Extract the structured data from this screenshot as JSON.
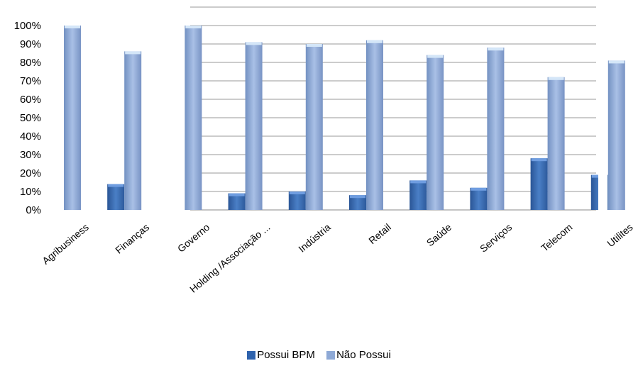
{
  "chart_data": {
    "type": "bar",
    "categories": [
      "Agribusiness",
      "Finanças",
      "Governo",
      "Holding /Associação ...",
      "Indústria",
      "Retail",
      "Saúde",
      "Serviços",
      "Telecom",
      "Utilites"
    ],
    "series": [
      {
        "name": "Possui BPM",
        "values": [
          0,
          14,
          0,
          9,
          10,
          8,
          16,
          12,
          28,
          19
        ],
        "color": "#3a6db3"
      },
      {
        "name": "Não Possui",
        "values": [
          100,
          86,
          100,
          91,
          90,
          92,
          84,
          88,
          72,
          81
        ],
        "color": "#8ea9d6"
      }
    ],
    "y_ticks": [
      "0%",
      "10%",
      "20%",
      "30%",
      "40%",
      "50%",
      "60%",
      "70%",
      "80%",
      "90%",
      "100%"
    ],
    "ylim": [
      0,
      100
    ],
    "grid": true,
    "legend_position": "bottom"
  }
}
